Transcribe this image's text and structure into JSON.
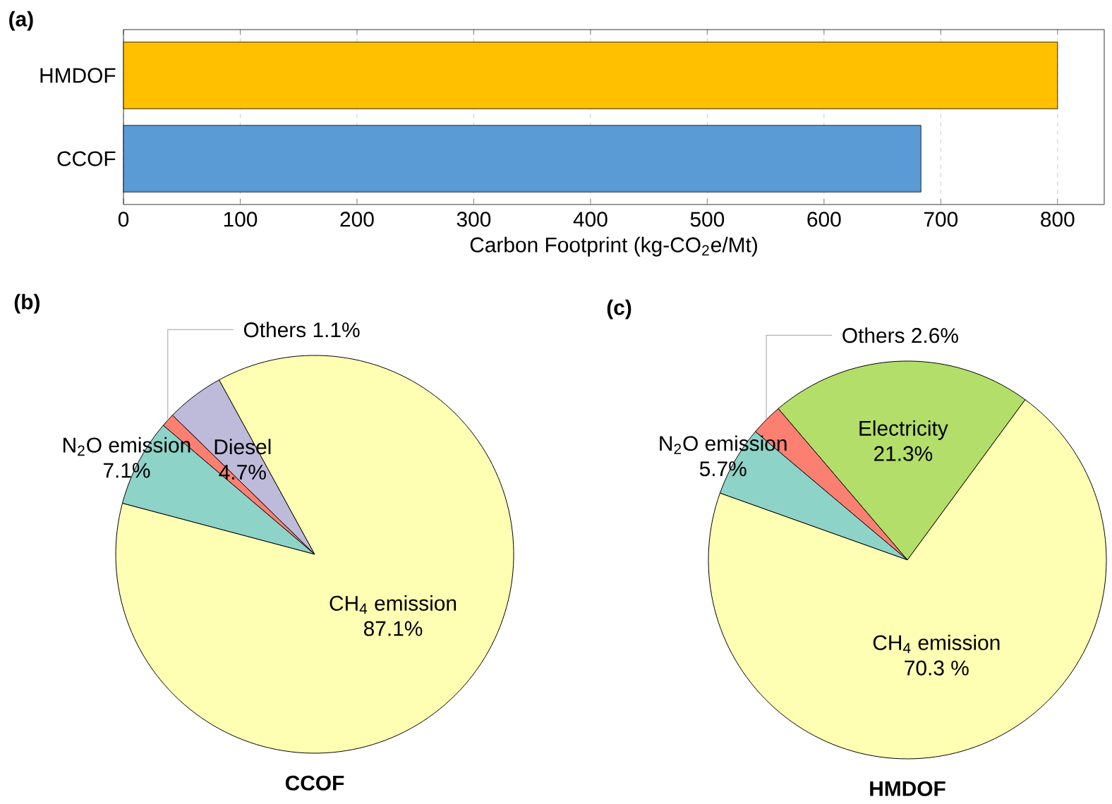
{
  "chart_data": [
    {
      "type": "bar",
      "title": "(a)",
      "orientation": "horizontal",
      "categories": [
        "HMDOF",
        "CCOF"
      ],
      "values": [
        800,
        683
      ],
      "colors": [
        "#ffc000",
        "#5b9bd5"
      ],
      "xlabel": "Carbon Footprint (kg-CO$_{2}$e/Mt)",
      "xlim": [
        0,
        840
      ],
      "xticks": [
        0,
        100,
        200,
        300,
        400,
        500,
        600,
        700,
        800
      ],
      "grid": "x"
    },
    {
      "type": "pie",
      "title": "(b)",
      "xlabel": "CCOF",
      "categories": [
        "Diesel",
        "Others",
        "N$_{2}$O emission",
        "CH$_{4}$ emission"
      ],
      "values": [
        4.7,
        1.1,
        7.1,
        87.1
      ],
      "value_labels": [
        "4.7%",
        "1.1%",
        "7.1%",
        "87.1%"
      ],
      "colors": [
        "#bebada",
        "#fb8072",
        "#8dd3c7",
        "#ffffb3"
      ]
    },
    {
      "type": "pie",
      "title": "(c)",
      "xlabel": "HMDOF",
      "categories": [
        "Electricity",
        "Others",
        "N$_{2}$O emission",
        "CH$_{4}$ emission"
      ],
      "values": [
        21.3,
        2.6,
        5.7,
        70.3
      ],
      "value_labels": [
        "21.3%",
        "2.6%",
        "5.7%",
        "70.3 %"
      ],
      "colors": [
        "#b3de69",
        "#fb8072",
        "#8dd3c7",
        "#ffffb3"
      ]
    }
  ]
}
